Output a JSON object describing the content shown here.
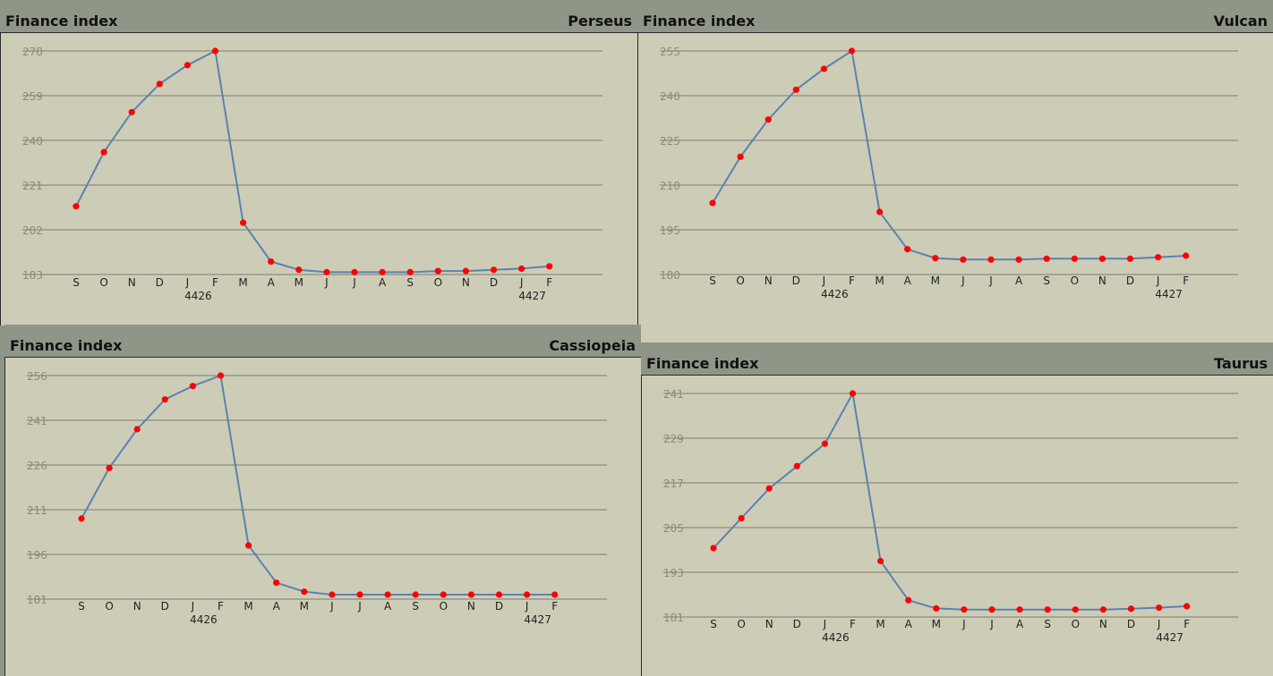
{
  "chart_data": [
    {
      "type": "line",
      "title": "Finance index",
      "subtitle": "Perseus",
      "categories": [
        "S",
        "O",
        "N",
        "D",
        "J",
        "F",
        "M",
        "A",
        "M",
        "J",
        "J",
        "A",
        "S",
        "O",
        "N",
        "D",
        "J",
        "F"
      ],
      "year_labels": [
        {
          "index": 4,
          "label": "4426"
        },
        {
          "index": 16,
          "label": "4427"
        }
      ],
      "yticks": [
        183,
        202,
        221,
        240,
        259,
        278
      ],
      "ylim": [
        183,
        278
      ],
      "series": [
        {
          "values": [
            212,
            235,
            252,
            264,
            272,
            278,
            205,
            188.5,
            185,
            184,
            184,
            184,
            184,
            184.5,
            184.5,
            185,
            185.5,
            186.5
          ]
        }
      ],
      "series_color": "#5b82b0",
      "point_color": "#ff0000",
      "grid": true
    },
    {
      "type": "line",
      "title": "Finance index",
      "subtitle": "Vulcan",
      "categories": [
        "S",
        "O",
        "N",
        "D",
        "J",
        "F",
        "M",
        "A",
        "M",
        "J",
        "J",
        "A",
        "S",
        "O",
        "N",
        "D",
        "J",
        "F"
      ],
      "year_labels": [
        {
          "index": 4,
          "label": "4426"
        },
        {
          "index": 16,
          "label": "4427"
        }
      ],
      "yticks": [
        180,
        195,
        210,
        225,
        240,
        255
      ],
      "ylim": [
        180,
        255
      ],
      "series": [
        {
          "values": [
            204,
            219.5,
            232,
            242,
            249,
            255,
            201,
            188.5,
            185.5,
            185,
            185,
            185,
            185.3,
            185.3,
            185.3,
            185.3,
            185.8,
            186.3
          ]
        }
      ],
      "series_color": "#5b82b0",
      "point_color": "#ff0000",
      "grid": true
    },
    {
      "type": "line",
      "title": "Finance index",
      "subtitle": "Cassiopeia",
      "categories": [
        "S",
        "O",
        "N",
        "D",
        "J",
        "F",
        "M",
        "A",
        "M",
        "J",
        "J",
        "A",
        "S",
        "O",
        "N",
        "D",
        "J",
        "F"
      ],
      "year_labels": [
        {
          "index": 4,
          "label": "4426"
        },
        {
          "index": 16,
          "label": "4427"
        }
      ],
      "yticks": [
        181,
        196,
        211,
        226,
        241,
        256
      ],
      "ylim": [
        181,
        256
      ],
      "series": [
        {
          "values": [
            208,
            225,
            238,
            248,
            252.5,
            256,
            199,
            186.5,
            183.5,
            182.5,
            182.5,
            182.5,
            182.5,
            182.5,
            182.5,
            182.5,
            182.5,
            182.5
          ]
        }
      ],
      "series_color": "#5b82b0",
      "point_color": "#ff0000",
      "grid": true
    },
    {
      "type": "line",
      "title": "Finance index",
      "subtitle": "Taurus",
      "categories": [
        "S",
        "O",
        "N",
        "D",
        "J",
        "F",
        "M",
        "A",
        "M",
        "J",
        "J",
        "A",
        "S",
        "O",
        "N",
        "D",
        "J",
        "F"
      ],
      "year_labels": [
        {
          "index": 4,
          "label": "4426"
        },
        {
          "index": 16,
          "label": "4427"
        }
      ],
      "yticks": [
        181,
        193,
        205,
        217,
        229,
        241
      ],
      "ylim": [
        181,
        241
      ],
      "series": [
        {
          "values": [
            199.5,
            207.5,
            215.5,
            221.5,
            227.5,
            241,
            196,
            185.5,
            183.3,
            183,
            183,
            183,
            183,
            183,
            183,
            183.2,
            183.5,
            183.9
          ]
        }
      ],
      "series_color": "#5b82b0",
      "point_color": "#ff0000",
      "grid": true
    }
  ]
}
